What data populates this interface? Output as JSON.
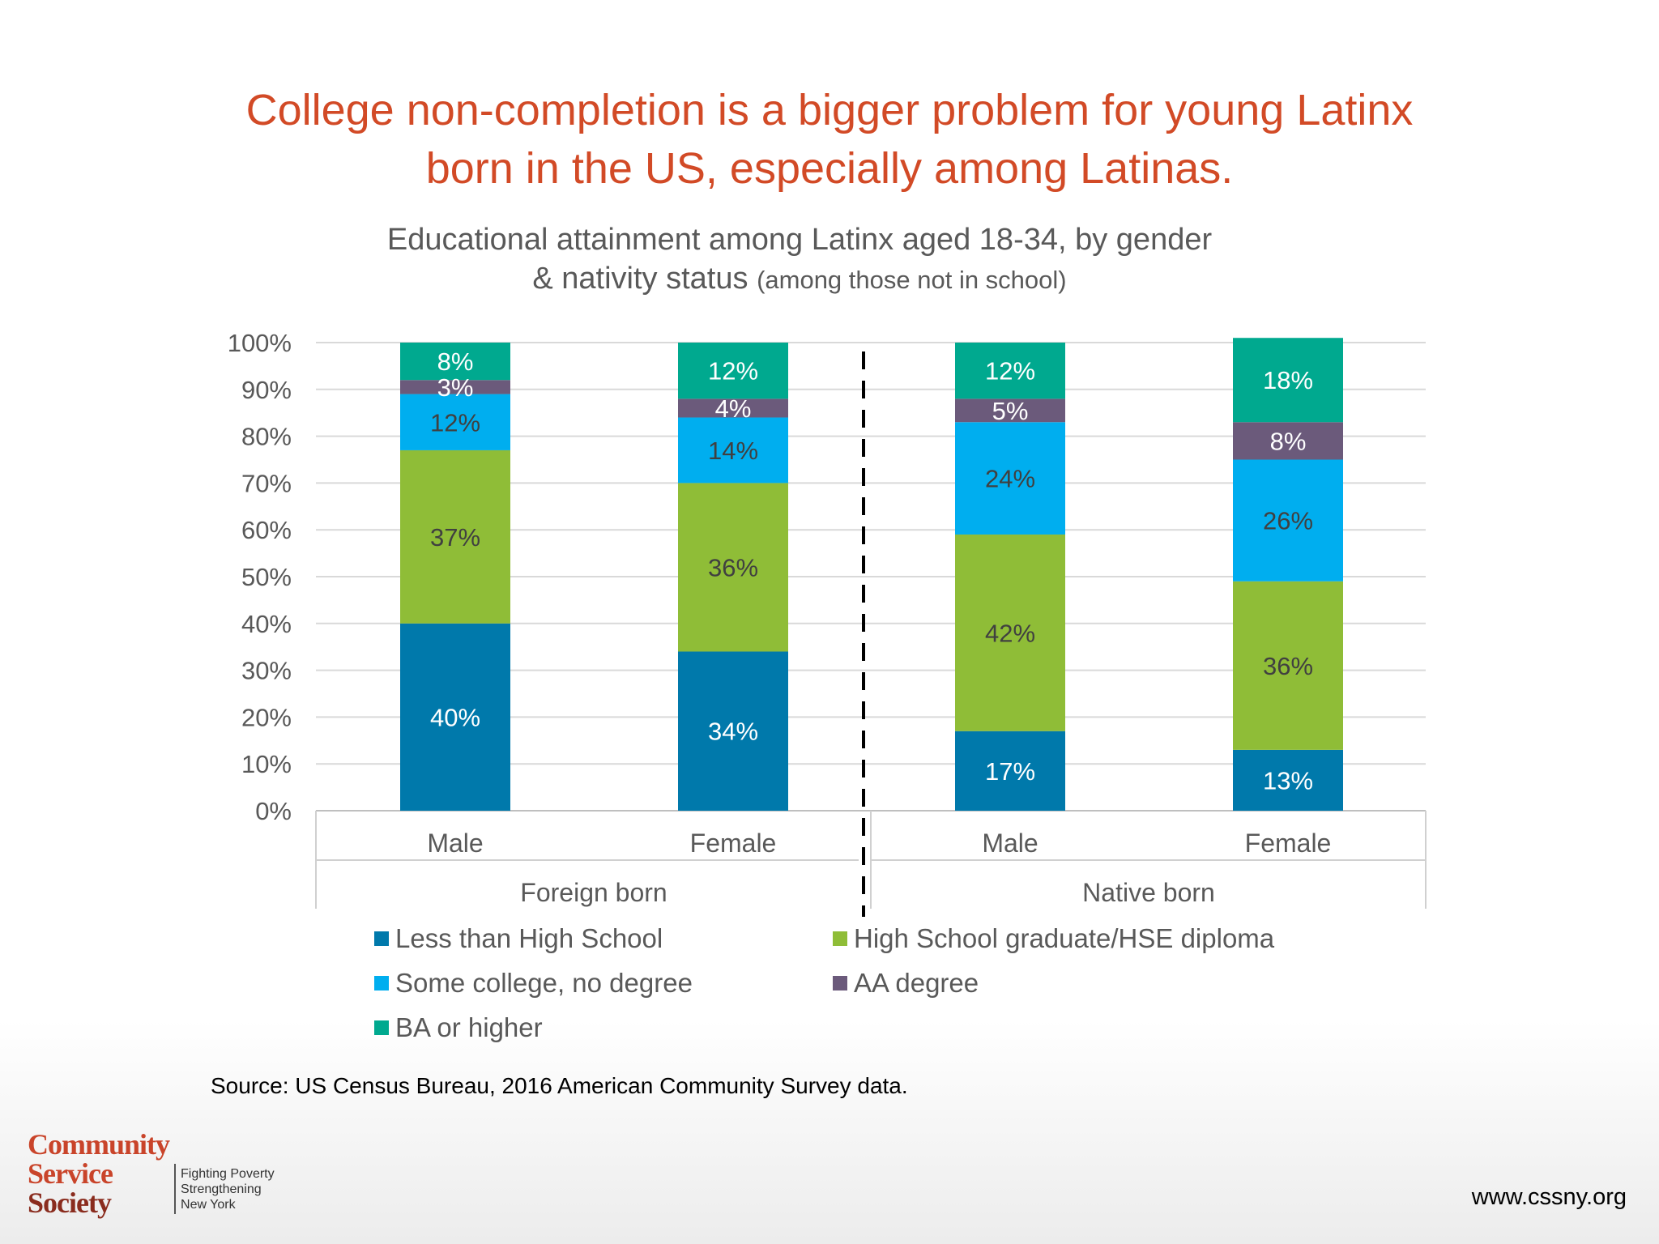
{
  "headline": {
    "line1": "College non-completion is a bigger problem for young Latinx",
    "line2": "born in the US, especially among Latinas."
  },
  "subtitle": {
    "line1": "Educational attainment among Latinx aged 18-34, by gender",
    "line2_main": "& nativity status",
    "line2_small": "(among those not in school)"
  },
  "chart_data": {
    "type": "bar",
    "stacked": true,
    "title": "Educational attainment among Latinx aged 18-34, by gender & nativity status (among those not in school)",
    "categories": [
      "Male",
      "Female",
      "Male",
      "Female"
    ],
    "groups": [
      {
        "label": "Foreign born",
        "categories": [
          "Male",
          "Female"
        ]
      },
      {
        "label": "Native born",
        "categories": [
          "Male",
          "Female"
        ]
      }
    ],
    "series": [
      {
        "name": "Less than High School",
        "color": "#0079ab",
        "values": [
          40,
          34,
          17,
          13
        ],
        "label_color": "#ffffff"
      },
      {
        "name": "High School graduate/HSE diploma",
        "color": "#8fbd37",
        "values": [
          37,
          36,
          42,
          36
        ],
        "label_color": "#404040"
      },
      {
        "name": "Some college, no degree",
        "color": "#00aeef",
        "values": [
          12,
          14,
          24,
          26
        ],
        "label_color": "#404040"
      },
      {
        "name": "AA degree",
        "color": "#6b5a7b",
        "values": [
          3,
          4,
          5,
          8
        ],
        "label_color": "#ffffff"
      },
      {
        "name": "BA or higher",
        "color": "#00a98f",
        "values": [
          8,
          12,
          12,
          18
        ],
        "label_color": "#ffffff"
      }
    ],
    "ylim": [
      0,
      100
    ],
    "yticks": [
      "0%",
      "10%",
      "20%",
      "30%",
      "40%",
      "50%",
      "60%",
      "70%",
      "80%",
      "90%",
      "100%"
    ],
    "grid": true,
    "legend_position": "bottom"
  },
  "source": "Source: US Census Bureau, 2016 American Community Survey data.",
  "logo": {
    "line1": "Community",
    "line2": "Service",
    "line3": "Society",
    "tag1": "Fighting Poverty",
    "tag2": "Strengthening",
    "tag3": "New York"
  },
  "website": "www.cssny.org"
}
